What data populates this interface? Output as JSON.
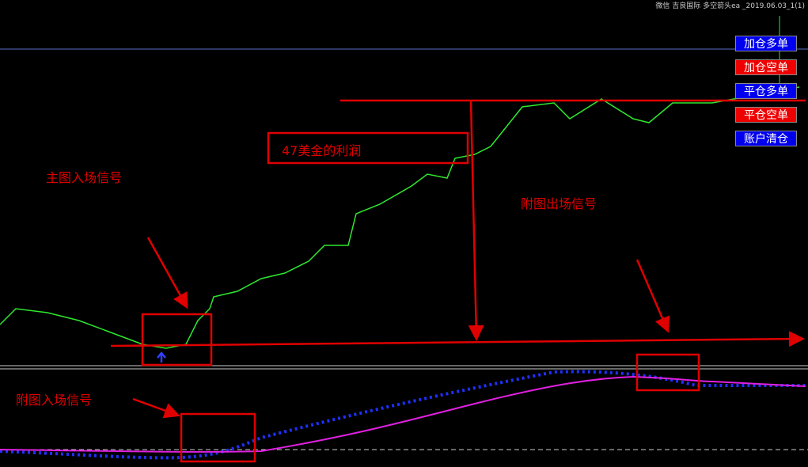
{
  "header": {
    "title": "微信 吉良国际 多空箭头ea _2019.06.03_1(1)"
  },
  "buttons": [
    "加仓多单",
    "加仓空单",
    "平仓多单",
    "平仓空单",
    "账户清仓"
  ],
  "annotations": {
    "profit": "47美金的利润",
    "main_entry": "主图入场信号",
    "sub_exit": "附图出场信号",
    "sub_entry": "附图入场信号"
  }
}
